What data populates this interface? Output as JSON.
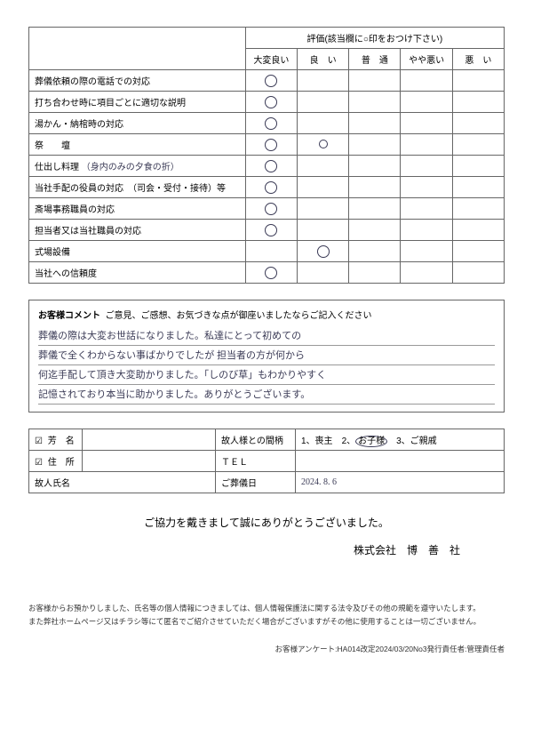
{
  "rating_header": "評価(該当欄に○印をおつけ下さい)",
  "rating_cols": [
    "大変良い",
    "良　い",
    "普　通",
    "やや悪い",
    "悪　い"
  ],
  "rating_rows": [
    {
      "label": "葬儀依頼の際の電話での対応",
      "marks": [
        true,
        false,
        false,
        false,
        false
      ],
      "note": ""
    },
    {
      "label": "打ち合わせ時に項目ごとに適切な説明",
      "marks": [
        true,
        false,
        false,
        false,
        false
      ],
      "note": ""
    },
    {
      "label": "湯かん・納棺時の対応",
      "marks": [
        true,
        false,
        false,
        false,
        false
      ],
      "note": ""
    },
    {
      "label": "祭　　壇",
      "marks": [
        true,
        "small",
        false,
        false,
        false
      ],
      "note": ""
    },
    {
      "label": "仕出し料理",
      "marks": [
        true,
        false,
        false,
        false,
        false
      ],
      "note": "（身内のみの夕食の折）"
    },
    {
      "label": "当社手配の役員の対応　（司会・受付・接待）等",
      "marks": [
        true,
        false,
        false,
        false,
        false
      ],
      "note": ""
    },
    {
      "label": "斎場事務職員の対応",
      "marks": [
        true,
        false,
        false,
        false,
        false
      ],
      "note": ""
    },
    {
      "label": "担当者又は当社職員の対応",
      "marks": [
        true,
        false,
        false,
        false,
        false
      ],
      "note": ""
    },
    {
      "label": "式場設備",
      "marks": [
        false,
        true,
        false,
        false,
        false
      ],
      "note": ""
    },
    {
      "label": "当社への信頼度",
      "marks": [
        true,
        false,
        false,
        false,
        false
      ],
      "note": ""
    }
  ],
  "comment": {
    "title_label": "お客様コメント",
    "title_desc": "ご意見、ご感想、お気づきな点が御座いましたならご記入ください",
    "lines": [
      "葬儀の際は大変お世話になりました。私達にとって初めての",
      "葬儀で全くわからない事ばかりでしたが 担当者の方が何から",
      "何迄手配して頂き大変助かりました。「しのび草」もわかりやすく",
      "記憶されており本当に助かりました。ありがとうございます。"
    ]
  },
  "info": {
    "name_label": "芳　名",
    "relation_label": "故人様との間柄",
    "relation_options": "1、喪主　2、お子様　3、ご親戚",
    "relation_selected": 2,
    "addr_label": "住　所",
    "tel_label": "ＴＥＬ",
    "deceased_label": "故人氏名",
    "funeral_date_label": "ご葬儀日",
    "funeral_date_value": "2024. 8. 6"
  },
  "closing": "ご協力を戴きまして誠にありがとうございました。",
  "company": "株式会社　博　善　社",
  "fineprint": [
    "お客様からお預かりしました、氏名等の個人情報につきましては、個人情報保護法に関する法令及びその他の規範を遵守いたします。",
    "また弊社ホームページ又はチラシ等にて匿名でご紹介させていただく場合がございますがその他に使用することは一切ございません。"
  ],
  "footer": "お客様アンケート:HA014改定2024/03/20No3発行責任者:管理責任者"
}
